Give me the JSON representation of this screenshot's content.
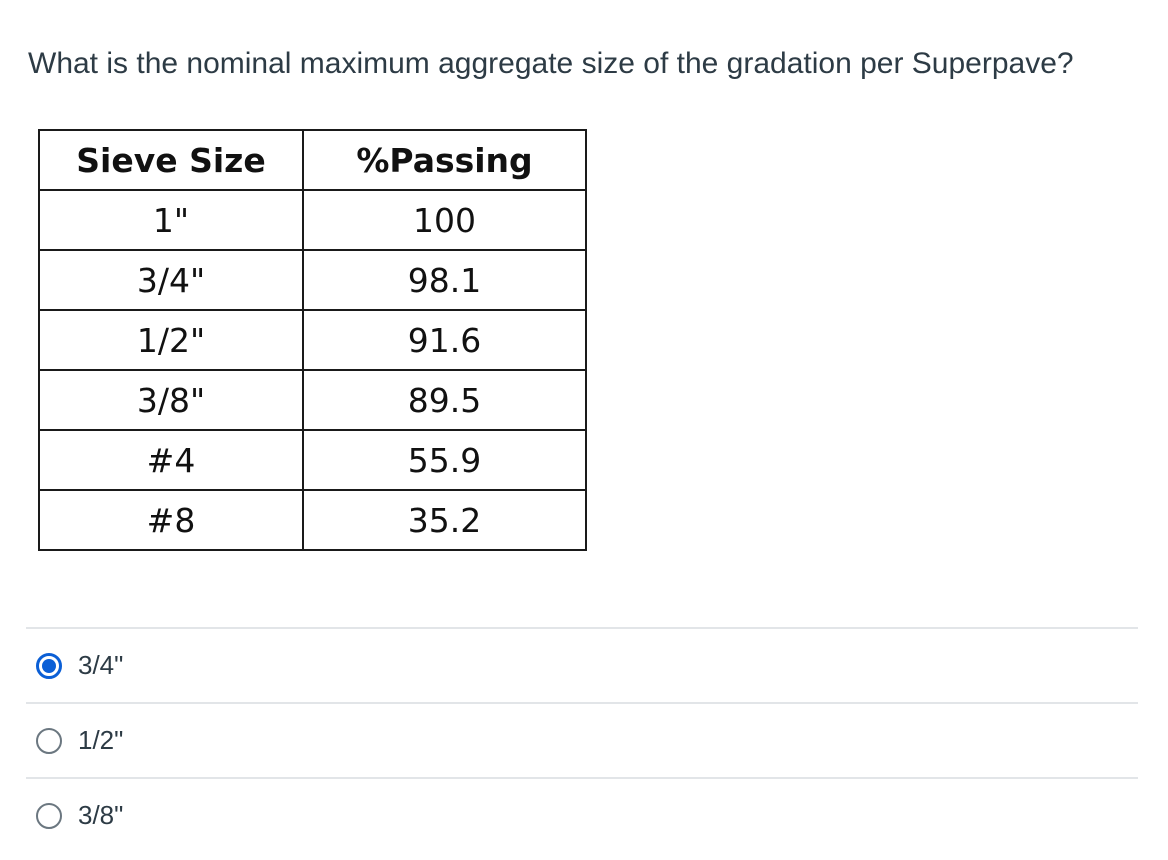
{
  "question": {
    "text": "What is the nominal maximum aggregate size of the gradation per Superpave?"
  },
  "table": {
    "headers": {
      "sieve": "Sieve Size",
      "passing": "%Passing"
    },
    "rows": [
      {
        "sieve": "1\"",
        "passing": "100"
      },
      {
        "sieve": "3/4\"",
        "passing": "98.1"
      },
      {
        "sieve": "1/2\"",
        "passing": "91.6"
      },
      {
        "sieve": "3/8\"",
        "passing": "89.5"
      },
      {
        "sieve": "#4",
        "passing": "55.9"
      },
      {
        "sieve": "#8",
        "passing": "35.2"
      }
    ]
  },
  "answers": [
    {
      "label": "3/4\"",
      "selected": true
    },
    {
      "label": "1/2\"",
      "selected": false
    },
    {
      "label": "3/8\"",
      "selected": false
    }
  ],
  "colors": {
    "accent": "#0b5fd6",
    "text": "#2d3b45",
    "divider": "#e2e5e8"
  }
}
